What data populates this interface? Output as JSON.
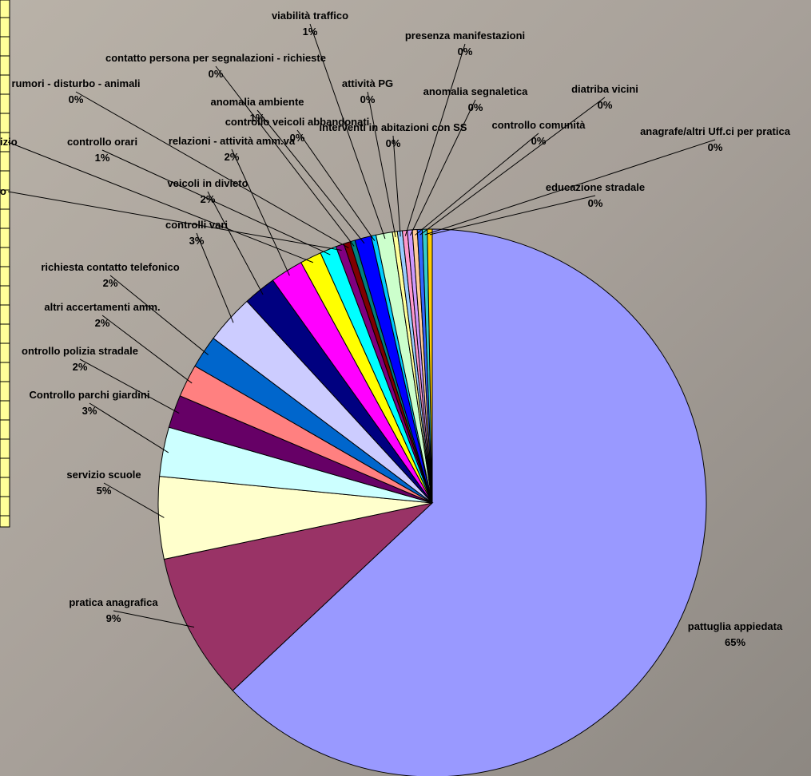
{
  "chart_data": {
    "type": "pie",
    "labels": [
      "pattuglia appiedata",
      "pratica anagrafica",
      "servizio scuole",
      "Controllo parchi giardini",
      "ontrollo polizia stradale",
      "altri accertamenti amm.",
      "richiesta contatto telefonico",
      "controlli vari",
      "veicoli in divieto",
      "relazioni - attività amm.va",
      "izio",
      "controllo orari",
      "o",
      "rumori - disturbo - animali",
      "contatto persona per segnalazioni - richieste",
      "anomalia ambiente",
      "controllo veicoli abbandonati",
      "viabilità traffico",
      "attività PG",
      "interventi in abitazioni con SS",
      "presenza manifestazioni",
      "anomalia segnaletica",
      "controllo comunità",
      "diatriba vicini",
      "anagrafe/altri Uff.ci per pratica",
      "educazione stradale"
    ],
    "values": [
      65,
      9,
      5,
      3,
      2,
      2,
      2,
      3,
      2,
      2,
      1.3,
      1,
      0.5,
      0.4,
      0.3,
      1,
      0.3,
      1,
      0.3,
      0.3,
      0.3,
      0.3,
      0.3,
      0.3,
      0.3,
      0.3
    ],
    "value_labels": [
      "65%",
      "9%",
      "5%",
      "3%",
      "2%",
      "2%",
      "2%",
      "3%",
      "2%",
      "2%",
      null,
      "1%",
      null,
      "0%",
      "0%",
      "1%",
      "0%",
      "1%",
      "0%",
      "0%",
      "0%",
      "0%",
      "0%",
      "0%",
      "0%",
      "0%"
    ],
    "colors": [
      "#9999ff",
      "#993366",
      "#ffffcc",
      "#ccffff",
      "#660066",
      "#ff8080",
      "#0066cc",
      "#ccccff",
      "#000080",
      "#ff00ff",
      "#ffff00",
      "#00ffff",
      "#800080",
      "#800000",
      "#008080",
      "#0000ff",
      "#00ccff",
      "#ccffcc",
      "#ffff99",
      "#99ccff",
      "#ff99cc",
      "#cc99ff",
      "#ffcc99",
      "#3366ff",
      "#33cccc",
      "#ffcc00"
    ]
  }
}
